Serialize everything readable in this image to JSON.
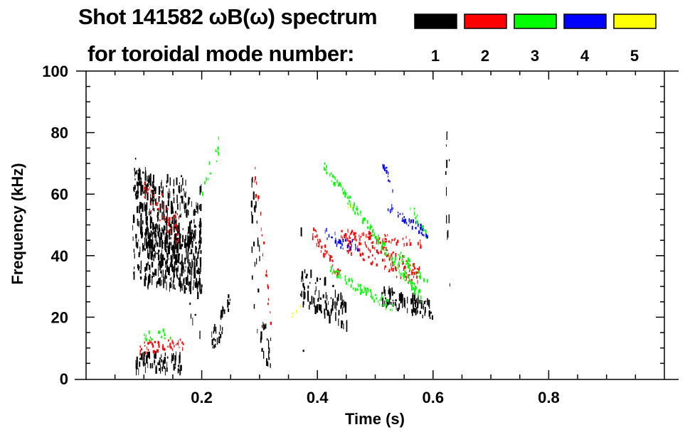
{
  "chart_data": {
    "type": "heatmap",
    "title": "Shot 141582 ωB(ω) spectrum",
    "subtitle": "for toroidal mode number:",
    "xlabel": "Time (s)",
    "ylabel": "Frequency (kHz)",
    "xlim": [
      0,
      1.0
    ],
    "ylim": [
      0,
      100
    ],
    "xticks": [
      "0.2",
      "0.4",
      "0.6",
      "0.8"
    ],
    "xtick_values": [
      0.2,
      0.4,
      0.6,
      0.8
    ],
    "yticks": [
      "0",
      "20",
      "40",
      "60",
      "80",
      "100"
    ],
    "ytick_values": [
      0,
      20,
      40,
      60,
      80,
      100
    ],
    "legend": [
      {
        "label": "1",
        "color": "#000000"
      },
      {
        "label": "2",
        "color": "#ff0000"
      },
      {
        "label": "3",
        "color": "#00ff00"
      },
      {
        "label": "4",
        "color": "#0000ff"
      },
      {
        "label": "5",
        "color": "#ffff00"
      }
    ],
    "features_columns": [
      "mode",
      "t_start",
      "f_start",
      "t_end",
      "f_end",
      "spread_kHz",
      "density"
    ],
    "features": [
      [
        1,
        0.08,
        50,
        0.2,
        45,
        18,
        1.0
      ],
      [
        1,
        0.08,
        62,
        0.16,
        42,
        12,
        1.0
      ],
      [
        1,
        0.1,
        40,
        0.2,
        38,
        10,
        0.7
      ],
      [
        1,
        0.085,
        5,
        0.165,
        5,
        3,
        0.9
      ],
      [
        1,
        0.16,
        50,
        0.2,
        30,
        20,
        0.4
      ],
      [
        1,
        0.215,
        10,
        0.25,
        26,
        4,
        0.8
      ],
      [
        1,
        0.285,
        50,
        0.3,
        25,
        20,
        0.6
      ],
      [
        1,
        0.3,
        15,
        0.32,
        8,
        6,
        0.9
      ],
      [
        1,
        0.37,
        30,
        0.45,
        22,
        6,
        1.0
      ],
      [
        1,
        0.37,
        55,
        0.375,
        15,
        10,
        0.5
      ],
      [
        1,
        0.51,
        27,
        0.6,
        22,
        3,
        0.9
      ],
      [
        1,
        0.62,
        90,
        0.63,
        30,
        25,
        0.5
      ],
      [
        2,
        0.1,
        62,
        0.16,
        48,
        5,
        0.8
      ],
      [
        2,
        0.09,
        10,
        0.17,
        11,
        2,
        0.6
      ],
      [
        2,
        0.29,
        68,
        0.32,
        18,
        5,
        0.7
      ],
      [
        2,
        0.39,
        48,
        0.44,
        33,
        2,
        0.8
      ],
      [
        2,
        0.45,
        45,
        0.58,
        33,
        4,
        0.9
      ],
      [
        2,
        0.44,
        47,
        0.58,
        44,
        1.5,
        0.5
      ],
      [
        3,
        0.41,
        69,
        0.58,
        26,
        1.5,
        0.8
      ],
      [
        3,
        0.42,
        35,
        0.53,
        23,
        1.5,
        0.6
      ],
      [
        3,
        0.54,
        40,
        0.59,
        32,
        1.5,
        0.6
      ],
      [
        3,
        0.56,
        56,
        0.59,
        46,
        1.5,
        0.6
      ],
      [
        3,
        0.2,
        62,
        0.23,
        76,
        3,
        0.4
      ],
      [
        3,
        0.1,
        13,
        0.15,
        15,
        2,
        0.3
      ],
      [
        4,
        0.51,
        71,
        0.53,
        62,
        1.5,
        0.7
      ],
      [
        4,
        0.52,
        56,
        0.59,
        47,
        1.5,
        0.6
      ],
      [
        4,
        0.41,
        47,
        0.47,
        42,
        2,
        0.5
      ],
      [
        5,
        0.355,
        22,
        0.37,
        24,
        2,
        0.3
      ],
      [
        5,
        0.45,
        55,
        0.46,
        56,
        1,
        0.3
      ]
    ]
  }
}
